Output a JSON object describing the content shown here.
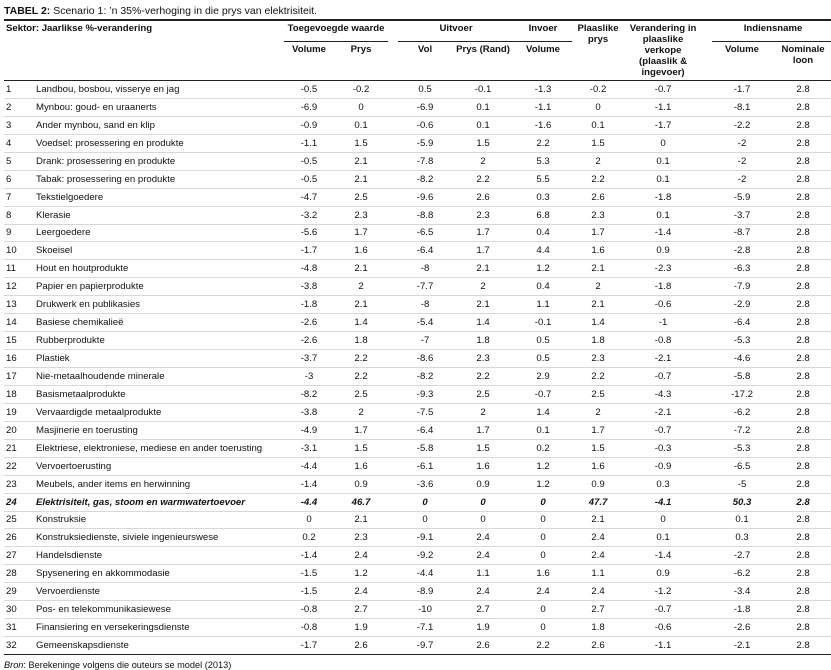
{
  "title": {
    "label": "TABEL 2:",
    "text": "Scenario 1: ’n 35%-verhoging in die prys van elektrisiteit."
  },
  "header": {
    "sector": "Sektor: Jaarlikse %-verandering",
    "groups": {
      "value_added": "Toegevoegde waarde",
      "exports": "Uitvoer",
      "imports": "Invoer",
      "local_price": "Plaaslike prys",
      "local_sales": "Verandering in plaaslike verkope (plaaslik & ingevoer)",
      "employment": "Indiensname"
    },
    "columns": [
      "Volume",
      "Prys",
      "Vol",
      "Prys (Rand)",
      "Volume",
      "Volume",
      "Nominale loon"
    ]
  },
  "table": {
    "rows": [
      {
        "number": 1,
        "name": "Landbou, bosbou, visserye en jag",
        "values": [
          -0.5,
          -0.2,
          0.5,
          -0.1,
          -1.3,
          -0.2,
          -0.7,
          -1.7,
          2.8
        ]
      },
      {
        "number": 2,
        "name": "Mynbou: goud- en uraanerts",
        "values": [
          -6.9,
          0,
          -6.9,
          0.1,
          -1.1,
          0,
          -1.1,
          -8.1,
          2.8
        ]
      },
      {
        "number": 3,
        "name": "Ander mynbou, sand en klip",
        "values": [
          -0.9,
          0.1,
          -0.6,
          0.1,
          -1.6,
          0.1,
          -1.7,
          -2.2,
          2.8
        ]
      },
      {
        "number": 4,
        "name": "Voedsel: prosessering en produkte",
        "values": [
          -1.1,
          1.5,
          -5.9,
          1.5,
          2.2,
          1.5,
          0,
          -2,
          2.8
        ]
      },
      {
        "number": 5,
        "name": "Drank: prosessering en produkte",
        "values": [
          -0.5,
          2.1,
          -7.8,
          2,
          5.3,
          2,
          0.1,
          -2,
          2.8
        ]
      },
      {
        "number": 6,
        "name": "Tabak: prosessering en produkte",
        "values": [
          -0.5,
          2.1,
          -8.2,
          2.2,
          5.5,
          2.2,
          0.1,
          -2,
          2.8
        ]
      },
      {
        "number": 7,
        "name": "Tekstielgoedere",
        "values": [
          -4.7,
          2.5,
          -9.6,
          2.6,
          0.3,
          2.6,
          -1.8,
          -5.9,
          2.8
        ]
      },
      {
        "number": 8,
        "name": "Klerasie",
        "values": [
          -3.2,
          2.3,
          -8.8,
          2.3,
          6.8,
          2.3,
          0.1,
          -3.7,
          2.8
        ]
      },
      {
        "number": 9,
        "name": "Leergoedere",
        "values": [
          -5.6,
          1.7,
          -6.5,
          1.7,
          0.4,
          1.7,
          -1.4,
          -8.7,
          2.8
        ]
      },
      {
        "number": 10,
        "name": "Skoeisel",
        "values": [
          -1.7,
          1.6,
          -6.4,
          1.7,
          4.4,
          1.6,
          0.9,
          -2.8,
          2.8
        ]
      },
      {
        "number": 11,
        "name": "Hout en houtprodukte",
        "values": [
          -4.8,
          2.1,
          -8,
          2.1,
          1.2,
          2.1,
          -2.3,
          -6.3,
          2.8
        ]
      },
      {
        "number": 12,
        "name": "Papier en papierprodukte",
        "values": [
          -3.8,
          2,
          -7.7,
          2,
          0.4,
          2,
          -1.8,
          -7.9,
          2.8
        ]
      },
      {
        "number": 13,
        "name": "Drukwerk en publikasies",
        "values": [
          -1.8,
          2.1,
          -8,
          2.1,
          1.1,
          2.1,
          -0.6,
          -2.9,
          2.8
        ]
      },
      {
        "number": 14,
        "name": "Basiese chemikalieë",
        "values": [
          -2.6,
          1.4,
          -5.4,
          1.4,
          -0.1,
          1.4,
          -1,
          -6.4,
          2.8
        ]
      },
      {
        "number": 15,
        "name": "Rubberprodukte",
        "values": [
          -2.6,
          1.8,
          -7,
          1.8,
          0.5,
          1.8,
          -0.8,
          -5.3,
          2.8
        ]
      },
      {
        "number": 16,
        "name": "Plastiek",
        "values": [
          -3.7,
          2.2,
          -8.6,
          2.3,
          0.5,
          2.3,
          -2.1,
          -4.6,
          2.8
        ]
      },
      {
        "number": 17,
        "name": "Nie-metaalhoudende minerale",
        "values": [
          -3,
          2.2,
          -8.2,
          2.2,
          2.9,
          2.2,
          -0.7,
          -5.8,
          2.8
        ]
      },
      {
        "number": 18,
        "name": "Basismetaalprodukte",
        "values": [
          -8.2,
          2.5,
          -9.3,
          2.5,
          -0.7,
          2.5,
          -4.3,
          -17.2,
          2.8
        ]
      },
      {
        "number": 19,
        "name": "Vervaardigde metaalprodukte",
        "values": [
          -3.8,
          2,
          -7.5,
          2,
          1.4,
          2,
          -2.1,
          -6.2,
          2.8
        ]
      },
      {
        "number": 20,
        "name": "Masjinerie en toerusting",
        "values": [
          -4.9,
          1.7,
          -6.4,
          1.7,
          0.1,
          1.7,
          -0.7,
          -7.2,
          2.8
        ]
      },
      {
        "number": 21,
        "name": "Elektriese, elektroniese, mediese en ander toerusting",
        "values": [
          -3.1,
          1.5,
          -5.8,
          1.5,
          0.2,
          1.5,
          -0.3,
          -5.3,
          2.8
        ]
      },
      {
        "number": 22,
        "name": "Vervoertoerusting",
        "values": [
          -4.4,
          1.6,
          -6.1,
          1.6,
          1.2,
          1.6,
          -0.9,
          -6.5,
          2.8
        ]
      },
      {
        "number": 23,
        "name": "Meubels, ander items en herwinning",
        "values": [
          -1.4,
          0.9,
          -3.6,
          0.9,
          1.2,
          0.9,
          0.3,
          -5,
          2.8
        ]
      },
      {
        "number": 24,
        "name": "Elektrisiteit, gas, stoom en warmwatertoevoer",
        "values": [
          -4.4,
          46.7,
          0,
          0,
          0,
          47.7,
          -4.1,
          50.3,
          2.8
        ]
      },
      {
        "number": 25,
        "name": "Konstruksie",
        "values": [
          0,
          2.1,
          0,
          0,
          0,
          2.1,
          0,
          0.1,
          2.8
        ]
      },
      {
        "number": 26,
        "name": "Konstruksiedienste, siviele ingenieurswese",
        "values": [
          0.2,
          2.3,
          -9.1,
          2.4,
          0,
          2.4,
          0.1,
          0.3,
          2.8
        ]
      },
      {
        "number": 27,
        "name": "Handelsdienste",
        "values": [
          -1.4,
          2.4,
          -9.2,
          2.4,
          0,
          2.4,
          -1.4,
          -2.7,
          2.8
        ]
      },
      {
        "number": 28,
        "name": "Spysenering en akkommodasie",
        "values": [
          -1.5,
          1.2,
          -4.4,
          1.1,
          1.6,
          1.1,
          0.9,
          -6.2,
          2.8
        ]
      },
      {
        "number": 29,
        "name": "Vervoerdienste",
        "values": [
          -1.5,
          2.4,
          -8.9,
          2.4,
          2.4,
          2.4,
          -1.2,
          -3.4,
          2.8
        ]
      },
      {
        "number": 30,
        "name": "Pos- en telekommunikasiewese",
        "values": [
          -0.8,
          2.7,
          -10,
          2.7,
          0,
          2.7,
          -0.7,
          -1.8,
          2.8
        ]
      },
      {
        "number": 31,
        "name": "Finansiering en versekeringsdienste",
        "values": [
          -0.8,
          1.9,
          -7.1,
          1.9,
          0,
          1.8,
          -0.6,
          -2.6,
          2.8
        ]
      },
      {
        "number": 32,
        "name": "Gemeenskapsdienste",
        "values": [
          -1.7,
          2.6,
          -9.7,
          2.6,
          2.2,
          2.6,
          -1.1,
          -2.1,
          2.8
        ]
      }
    ]
  },
  "footer": {
    "source_label": "Bron",
    "source_text": ": Berekeninge volgens die outeurs se model (2013)"
  }
}
